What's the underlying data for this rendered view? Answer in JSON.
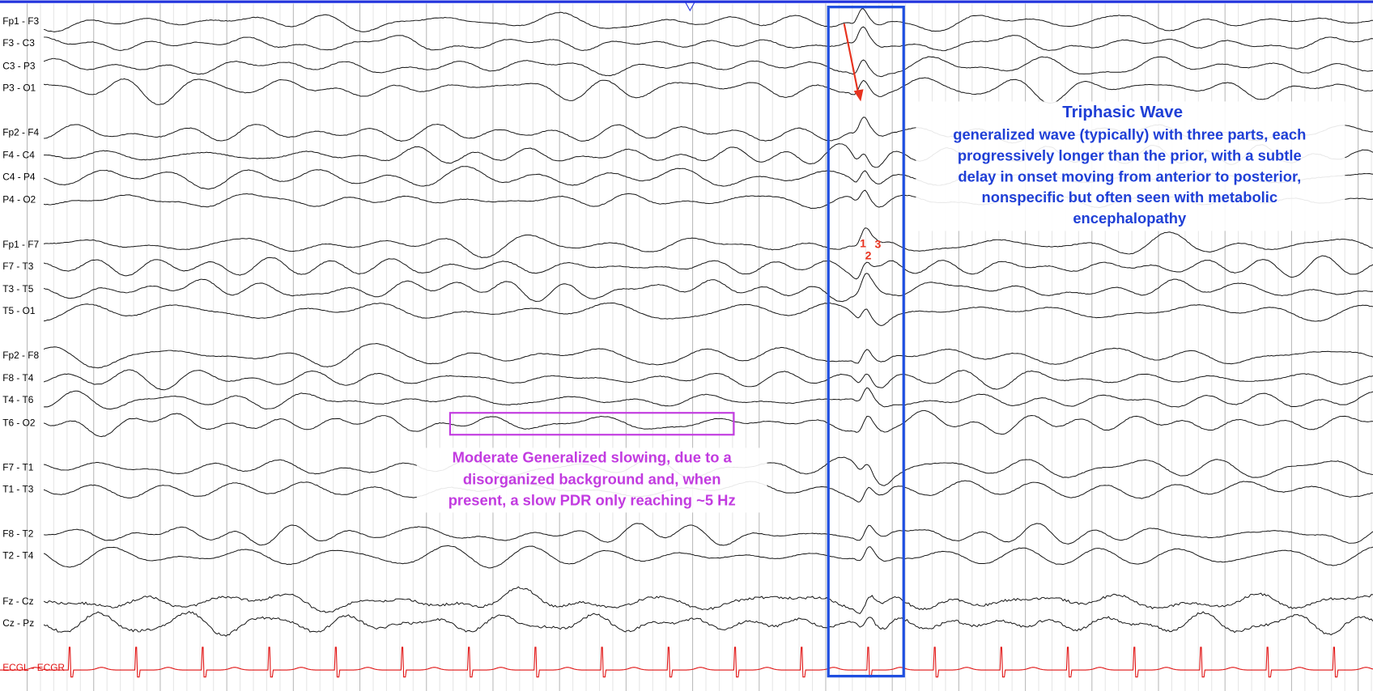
{
  "channels": [
    "Fp1 - F3",
    "F3 - C3",
    "C3 - P3",
    "P3 - O1",
    "Fp2 - F4",
    "F4 - C4",
    "C4 - P4",
    "P4 - O2",
    "Fp1 - F7",
    "F7 - T3",
    "T3 - T5",
    "T5 - O1",
    "Fp2 - F8",
    "F8 - T4",
    "T4 - T6",
    "T6 - O2",
    "F7 - T1",
    "T1 - T3",
    "F8 - T2",
    "T2 - T4",
    "Fz - Cz",
    "Cz - Pz"
  ],
  "ecg_label": "ECGL - ECGR",
  "triphasic": {
    "title": "Triphasic Wave",
    "lines": [
      "generalized wave (typically) with three parts, each",
      "progressively longer than the prior, with a subtle",
      "delay in onset moving from anterior to posterior,",
      "nonspecific but often seen with metabolic",
      "encephalopathy"
    ]
  },
  "phase_markers": [
    "1",
    "2",
    "3"
  ],
  "slowing": {
    "lines": [
      "Moderate Generalized slowing, due to a",
      "disorganized background and, when",
      "present, a slow PDR only reaching ~5 Hz"
    ]
  }
}
